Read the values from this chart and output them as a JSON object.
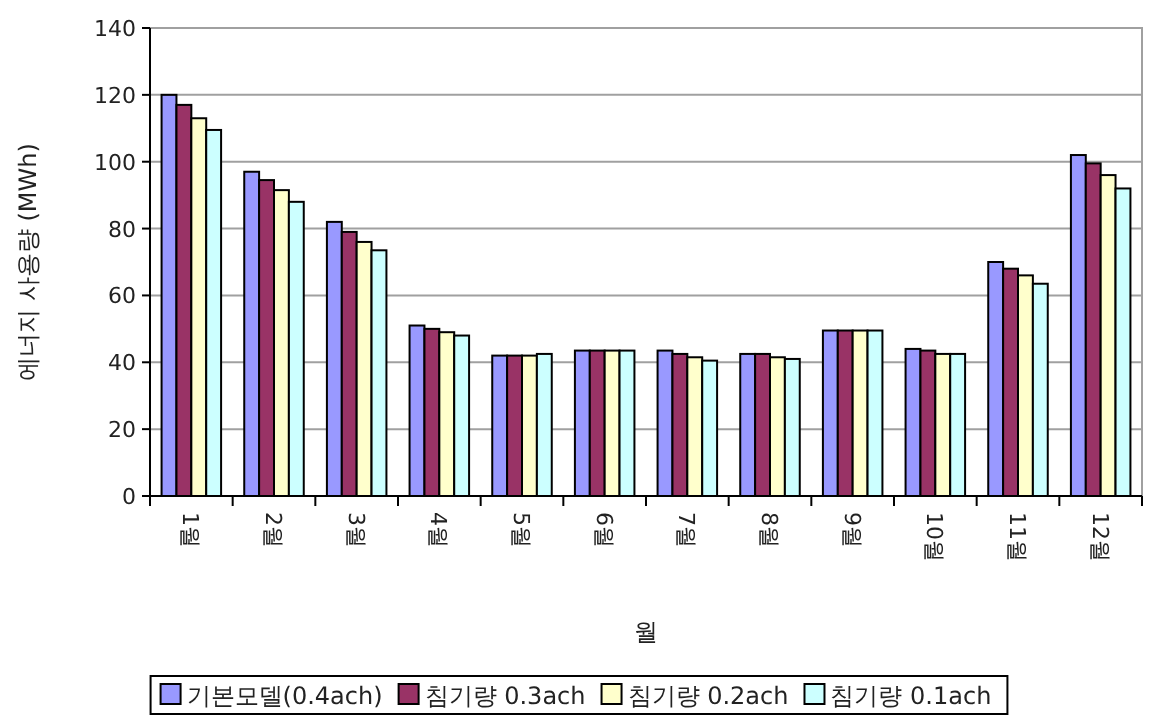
{
  "chart_data": {
    "type": "bar",
    "xlabel": "월",
    "ylabel": "에너지 사용량 (MWh)",
    "categories": [
      "1월",
      "2월",
      "3월",
      "4월",
      "5월",
      "6월",
      "7월",
      "8월",
      "9월",
      "10월",
      "11월",
      "12월"
    ],
    "series": [
      {
        "name": "기본모델(0.4ach)",
        "color": "#9999ff",
        "values": [
          120,
          97,
          82,
          51,
          42,
          43.5,
          43.5,
          42.5,
          49.5,
          44,
          70,
          102
        ]
      },
      {
        "name": "침기량 0.3ach",
        "color": "#993366",
        "values": [
          117,
          94.5,
          79,
          50,
          42,
          43.5,
          42.5,
          42.5,
          49.5,
          43.5,
          68,
          99.5
        ]
      },
      {
        "name": "침기량 0.2ach",
        "color": "#ffffcc",
        "values": [
          113,
          91.5,
          76,
          49,
          42,
          43.5,
          41.5,
          41.5,
          49.5,
          42.5,
          66,
          96
        ]
      },
      {
        "name": "침기량 0.1ach",
        "color": "#ccffff",
        "values": [
          109.5,
          88,
          73.5,
          48,
          42.5,
          43.5,
          40.5,
          41,
          49.5,
          42.5,
          63.5,
          92
        ]
      }
    ],
    "ylim": [
      0,
      140
    ],
    "yticks": [
      0,
      20,
      40,
      60,
      80,
      100,
      120,
      140
    ],
    "grid": "y",
    "legend": "bottom"
  }
}
